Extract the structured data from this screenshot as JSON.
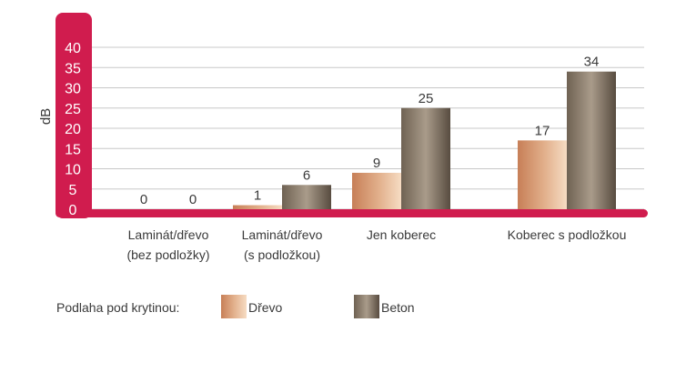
{
  "chart_data": {
    "type": "bar",
    "ylabel": "dB",
    "ylim": [
      0,
      40
    ],
    "yticks": [
      "0",
      "5",
      "10",
      "15",
      "20",
      "25",
      "30",
      "35",
      "40"
    ],
    "grid": true,
    "categories": [
      [
        "Laminát/dřevo",
        "(bez podložky)"
      ],
      [
        "Laminát/dřevo",
        "(s podložkou)"
      ],
      [
        "Jen koberec"
      ],
      [
        "Koberec s podložkou"
      ]
    ],
    "series": [
      {
        "name": "Dřevo",
        "values": [
          0,
          1,
          9,
          17
        ]
      },
      {
        "name": "Beton",
        "values": [
          0,
          6,
          25,
          34
        ]
      }
    ],
    "legend_position": "bottom-left"
  },
  "legend": {
    "title": "Podlaha pod krytinou:",
    "items": [
      {
        "label": "Dřevo",
        "color": "#d8a27c"
      },
      {
        "label": "Beton",
        "color": "#877a6c"
      }
    ]
  },
  "colors": {
    "axis_accent": "#d01c4e",
    "gridline": "#c8c8c8"
  }
}
